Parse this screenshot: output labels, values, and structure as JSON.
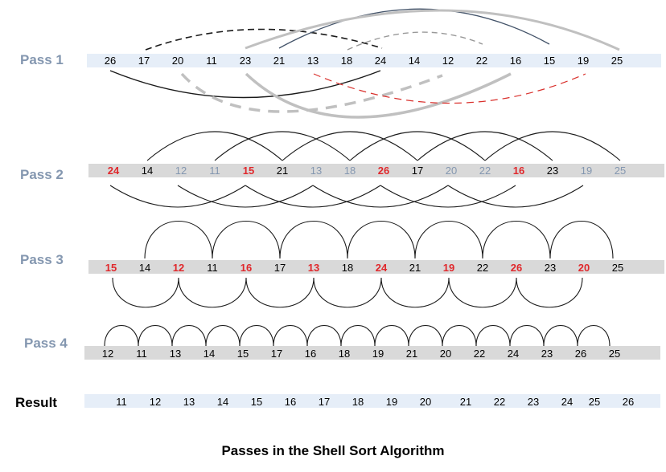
{
  "caption": "Passes in the Shell Sort Algorithm",
  "colors": {
    "label": "#8497b0",
    "red": "#e0282c",
    "gray_num": "#8497b0",
    "light_bar": "#e6eef8",
    "gray_bar": "#d9d9d9",
    "arc_dark": "#1a1a1a",
    "arc_slate": "#44546a",
    "arc_light": "#c0c0c0",
    "arc_red": "#d9302c"
  },
  "passes": [
    {
      "label": "Pass 1",
      "bar": "light",
      "values": [
        "26",
        "17",
        "20",
        "11",
        "23",
        "21",
        "13",
        "18",
        "24",
        "14",
        "12",
        "22",
        "16",
        "15",
        "19",
        "25"
      ],
      "value_colors": [
        "k",
        "k",
        "k",
        "k",
        "k",
        "k",
        "k",
        "k",
        "k",
        "k",
        "k",
        "k",
        "k",
        "k",
        "k",
        "k"
      ]
    },
    {
      "label": "Pass 2",
      "bar": "gray",
      "values": [
        "24",
        "14",
        "12",
        "11",
        "15",
        "21",
        "13",
        "18",
        "26",
        "17",
        "20",
        "22",
        "16",
        "23",
        "19",
        "25"
      ],
      "value_colors": [
        "r",
        "k",
        "g",
        "g",
        "r",
        "k",
        "g",
        "g",
        "r",
        "k",
        "g",
        "g",
        "r",
        "k",
        "g",
        "g"
      ]
    },
    {
      "label": "Pass 3",
      "bar": "gray",
      "values": [
        "15",
        "14",
        "12",
        "11",
        "16",
        "17",
        "13",
        "18",
        "24",
        "21",
        "19",
        "22",
        "26",
        "23",
        "20",
        "25"
      ],
      "value_colors": [
        "r",
        "k",
        "r",
        "k",
        "r",
        "k",
        "r",
        "k",
        "r",
        "k",
        "r",
        "k",
        "r",
        "k",
        "r",
        "k"
      ]
    },
    {
      "label": "Pass 4",
      "bar": "gray",
      "values": [
        "12",
        "11",
        "13",
        "14",
        "15",
        "17",
        "16",
        "18",
        "19",
        "21",
        "20",
        "22",
        "24",
        "23",
        "26",
        "25"
      ],
      "value_colors": [
        "k",
        "k",
        "k",
        "k",
        "k",
        "k",
        "k",
        "k",
        "k",
        "k",
        "k",
        "k",
        "k",
        "k",
        "k",
        "k"
      ]
    }
  ],
  "result": {
    "label": "Result",
    "values": [
      "11",
      "12",
      "13",
      "14",
      "15",
      "16",
      "17",
      "18",
      "19",
      "20",
      "21",
      "22",
      "23",
      "24",
      "25",
      "26"
    ]
  }
}
